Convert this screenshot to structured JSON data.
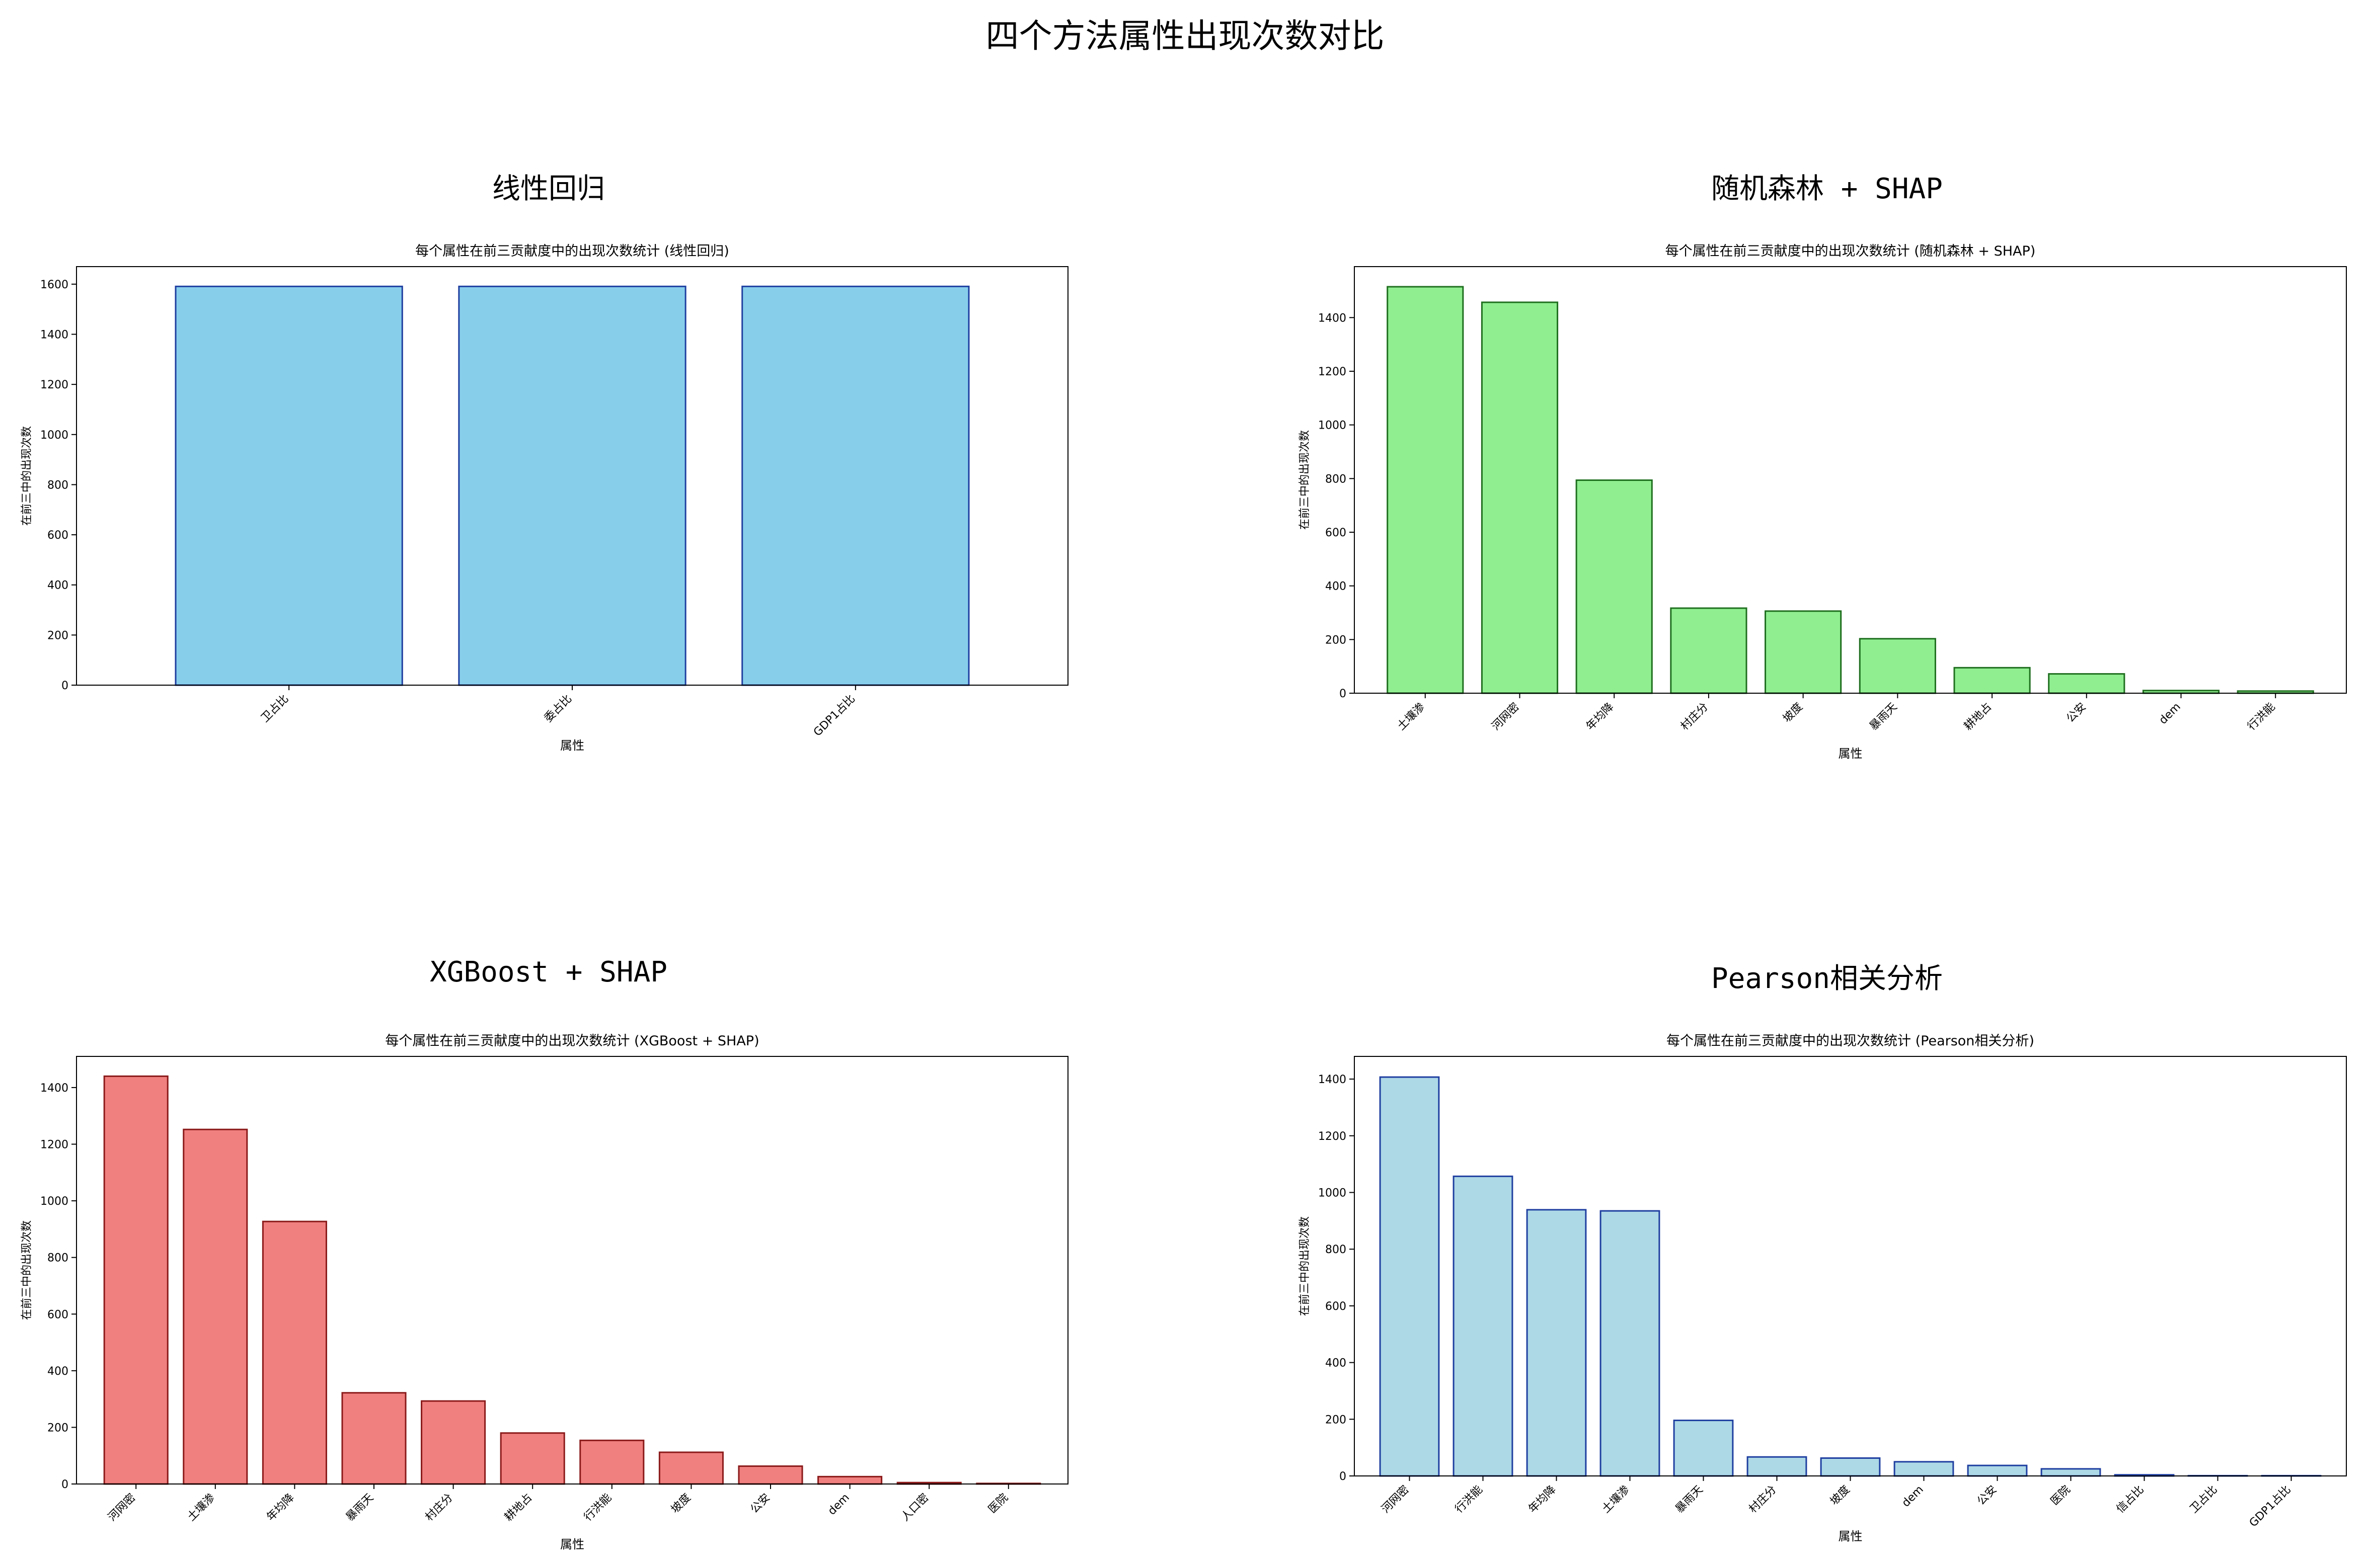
{
  "figure": {
    "title": "四个方法属性出现次数对比"
  },
  "chart_data": [
    {
      "panel_title": "线性回归",
      "type": "bar",
      "title": "每个属性在前三贡献度中的出现次数统计 (线性回归)",
      "xlabel": "属性",
      "ylabel": "在前三中的出现次数",
      "categories": [
        "卫占比",
        "委占比",
        "GDP1占比"
      ],
      "values": [
        1591,
        1591,
        1591
      ],
      "ylim": [
        0,
        1670
      ],
      "yticks": [
        0,
        200,
        400,
        600,
        800,
        1000,
        1200,
        1400,
        1600
      ],
      "bar_color": "#87ceeb",
      "edge_color": "#1f3fa0"
    },
    {
      "panel_title": "随机森林 + SHAP",
      "type": "bar",
      "title": "每个属性在前三贡献度中的出现次数统计 (随机森林 + SHAP)",
      "xlabel": "属性",
      "ylabel": "在前三中的出现次数",
      "categories": [
        "土壤渗",
        "河网密",
        "年均降",
        "村庄分",
        "坡度",
        "暴雨天",
        "耕地占",
        "公安",
        "dem",
        "行洪能"
      ],
      "values": [
        1515,
        1457,
        794,
        317,
        306,
        203,
        95,
        72,
        10,
        8
      ],
      "ylim": [
        0,
        1590
      ],
      "yticks": [
        0,
        200,
        400,
        600,
        800,
        1000,
        1200,
        1400
      ],
      "bar_color": "#90ee90",
      "edge_color": "#1f6f1f"
    },
    {
      "panel_title": "XGBoost + SHAP",
      "type": "bar",
      "title": "每个属性在前三贡献度中的出现次数统计 (XGBoost + SHAP)",
      "xlabel": "属性",
      "ylabel": "在前三中的出现次数",
      "categories": [
        "河网密",
        "土壤渗",
        "年均降",
        "暴雨天",
        "村庄分",
        "耕地占",
        "行洪能",
        "坡度",
        "公安",
        "dem",
        "人口密",
        "医院"
      ],
      "values": [
        1440,
        1252,
        927,
        322,
        293,
        180,
        154,
        112,
        63,
        26,
        5,
        2
      ],
      "ylim": [
        0,
        1510
      ],
      "yticks": [
        0,
        200,
        400,
        600,
        800,
        1000,
        1200,
        1400
      ],
      "bar_color": "#f08080",
      "edge_color": "#8b1a1a"
    },
    {
      "panel_title": "Pearson相关分析",
      "type": "bar",
      "title": "每个属性在前三贡献度中的出现次数统计 (Pearson相关分析)",
      "xlabel": "属性",
      "ylabel": "在前三中的出现次数",
      "categories": [
        "河网密",
        "行洪能",
        "年均降",
        "土壤渗",
        "暴雨天",
        "村庄分",
        "坡度",
        "dem",
        "公安",
        "医院",
        "信占比",
        "卫占比",
        "GDP1占比"
      ],
      "values": [
        1407,
        1057,
        939,
        935,
        196,
        67,
        63,
        50,
        37,
        25,
        4,
        1,
        1
      ],
      "ylim": [
        0,
        1480
      ],
      "yticks": [
        0,
        200,
        400,
        600,
        800,
        1000,
        1200,
        1400
      ],
      "bar_color": "#add8e6",
      "edge_color": "#1f3fa0"
    }
  ]
}
